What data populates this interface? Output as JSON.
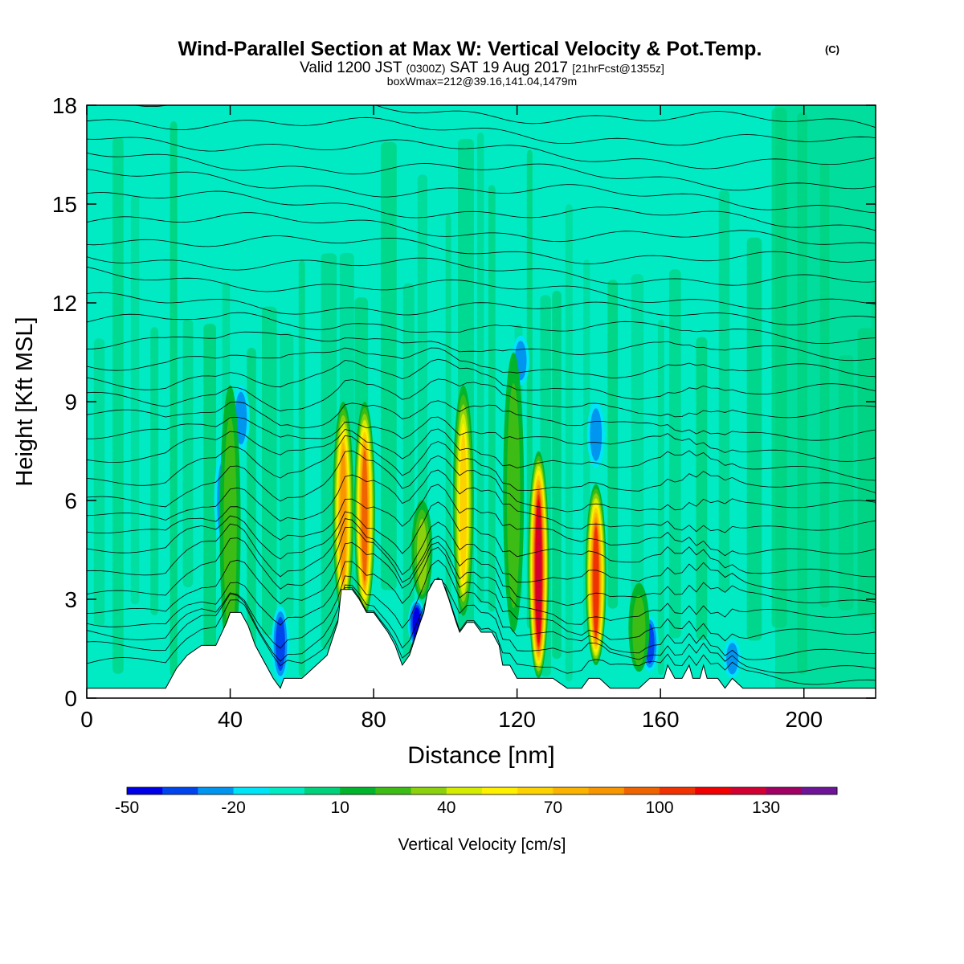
{
  "chart_data": {
    "type": "heatmap",
    "title": "Wind-Parallel Section at Max W: Vertical Velocity & Pot.Temp.",
    "title_mark": "(C)",
    "subtitle_prefix": "Valid 1200 JST",
    "subtitle_z": "(0300Z)",
    "subtitle_date": "SAT 19 Aug 2017",
    "subtitle_fcst": "[21hrFcst@1355z]",
    "subtitle2": "boxWmax=212@39.16,141.04,1479m",
    "xlabel": "Distance [nm]",
    "ylabel": "Height [Kft MSL]",
    "xlim": [
      0,
      220
    ],
    "ylim": [
      0,
      18
    ],
    "xticks": [
      "0",
      "40",
      "80",
      "120",
      "160",
      "200"
    ],
    "yticks": [
      "0",
      "3",
      "6",
      "9",
      "12",
      "15",
      "18"
    ],
    "colorbar": {
      "label": "Vertical Velocity [cm/s]",
      "tick_labels": [
        "-50",
        "-20",
        "10",
        "40",
        "70",
        "100",
        "130"
      ],
      "colors": [
        "#0000e6",
        "#0044ee",
        "#0096f0",
        "#00e4f8",
        "#00eac4",
        "#00d27c",
        "#00b42c",
        "#3cbc14",
        "#8cd20c",
        "#d4ec00",
        "#fff000",
        "#fcd200",
        "#fab400",
        "#f89600",
        "#f06400",
        "#f03200",
        "#f00000",
        "#d20032",
        "#a00064",
        "#6e1496"
      ],
      "bounds": [
        -50,
        150
      ]
    },
    "terrain": [
      [
        0,
        0.3
      ],
      [
        10,
        0.3
      ],
      [
        22,
        0.3
      ],
      [
        25,
        0.9
      ],
      [
        28,
        1.3
      ],
      [
        32,
        1.6
      ],
      [
        36,
        1.6
      ],
      [
        39,
        2.3
      ],
      [
        40,
        2.6
      ],
      [
        43,
        2.6
      ],
      [
        45,
        2.2
      ],
      [
        47,
        1.6
      ],
      [
        50,
        1.0
      ],
      [
        52,
        0.6
      ],
      [
        54,
        0.3
      ],
      [
        55,
        0.6
      ],
      [
        60,
        0.6
      ],
      [
        64,
        1.0
      ],
      [
        67,
        1.3
      ],
      [
        70,
        2.3
      ],
      [
        71,
        3.3
      ],
      [
        74,
        3.3
      ],
      [
        76,
        3.0
      ],
      [
        78,
        2.6
      ],
      [
        80,
        2.6
      ],
      [
        82,
        2.3
      ],
      [
        84,
        2.0
      ],
      [
        86,
        1.6
      ],
      [
        88,
        1.0
      ],
      [
        90,
        1.3
      ],
      [
        93,
        2.3
      ],
      [
        94,
        2.6
      ],
      [
        95,
        3.2
      ],
      [
        97,
        3.6
      ],
      [
        99,
        3.6
      ],
      [
        101,
        3.0
      ],
      [
        103,
        2.3
      ],
      [
        104,
        2.0
      ],
      [
        106,
        2.3
      ],
      [
        108,
        2.3
      ],
      [
        110,
        2.0
      ],
      [
        113,
        2.0
      ],
      [
        115,
        1.6
      ],
      [
        116,
        1.0
      ],
      [
        118,
        1.0
      ],
      [
        120,
        0.6
      ],
      [
        124,
        0.6
      ],
      [
        130,
        0.6
      ],
      [
        134,
        0.3
      ],
      [
        138,
        0.3
      ],
      [
        140,
        0.6
      ],
      [
        143,
        0.6
      ],
      [
        146,
        0.3
      ],
      [
        154,
        0.3
      ],
      [
        157,
        0.6
      ],
      [
        161,
        0.6
      ],
      [
        162,
        1.0
      ],
      [
        164,
        0.6
      ],
      [
        166,
        0.6
      ],
      [
        168,
        1.0
      ],
      [
        169,
        0.6
      ],
      [
        171,
        0.6
      ],
      [
        172,
        1.0
      ],
      [
        173,
        0.6
      ],
      [
        176,
        0.6
      ],
      [
        178,
        0.3
      ],
      [
        180,
        0.6
      ],
      [
        183,
        0.3
      ],
      [
        200,
        0.3
      ],
      [
        220,
        0.3
      ]
    ],
    "plumes": [
      {
        "x": 39,
        "y0": 1.0,
        "y1": 9.5,
        "w_max": 30,
        "x_mid": 40
      },
      {
        "x": 71,
        "y0": 2.5,
        "y1": 9.0,
        "w_max": 85,
        "x_mid": 71.5
      },
      {
        "x": 77,
        "y0": 2.5,
        "y1": 9.0,
        "w_max": 95,
        "x_mid": 77.5
      },
      {
        "x": 93,
        "y0": 3.0,
        "y1": 6.0,
        "w_max": 40,
        "x_mid": 93.5
      },
      {
        "x": 104,
        "y0": 2.5,
        "y1": 9.5,
        "w_max": 70,
        "x_mid": 105
      },
      {
        "x": 119,
        "y0": 2.0,
        "y1": 10.5,
        "w_max": 30,
        "x_mid": 119
      },
      {
        "x": 126,
        "y0": 0.6,
        "y1": 7.5,
        "w_max": 130,
        "x_mid": 126
      },
      {
        "x": 142,
        "y0": 1.0,
        "y1": 6.5,
        "w_max": 110,
        "x_mid": 142
      },
      {
        "x": 154,
        "y0": 0.8,
        "y1": 3.5,
        "w_max": 30,
        "x_mid": 154
      }
    ],
    "downdrafts": [
      {
        "x": 38,
        "y0": 4.5,
        "y1": 7.5,
        "w_min": -30
      },
      {
        "x": 43,
        "y0": 7.5,
        "y1": 9.5,
        "w_min": -30
      },
      {
        "x": 54,
        "y0": 0.5,
        "y1": 2.8,
        "w_min": -35
      },
      {
        "x": 92,
        "y0": 1.5,
        "y1": 3.0,
        "w_min": -45
      },
      {
        "x": 121,
        "y0": 9.5,
        "y1": 11.0,
        "w_min": -25
      },
      {
        "x": 142,
        "y0": 7.0,
        "y1": 9.0,
        "w_min": -30
      },
      {
        "x": 157,
        "y0": 0.8,
        "y1": 2.5,
        "w_min": -35
      },
      {
        "x": 180,
        "y0": 0.6,
        "y1": 1.8,
        "w_min": -30
      }
    ],
    "isentrope_heights": [
      0.6,
      1.0,
      1.4,
      1.9,
      2.4,
      2.9,
      3.4,
      4.0,
      4.6,
      5.2,
      5.8,
      6.4,
      7.0,
      7.6,
      8.2,
      8.8,
      9.4,
      10.0,
      10.6,
      11.2,
      11.8,
      12.4,
      13.0,
      13.6,
      14.2,
      14.8,
      15.4,
      16.0,
      16.6,
      17.2,
      17.8
    ]
  }
}
